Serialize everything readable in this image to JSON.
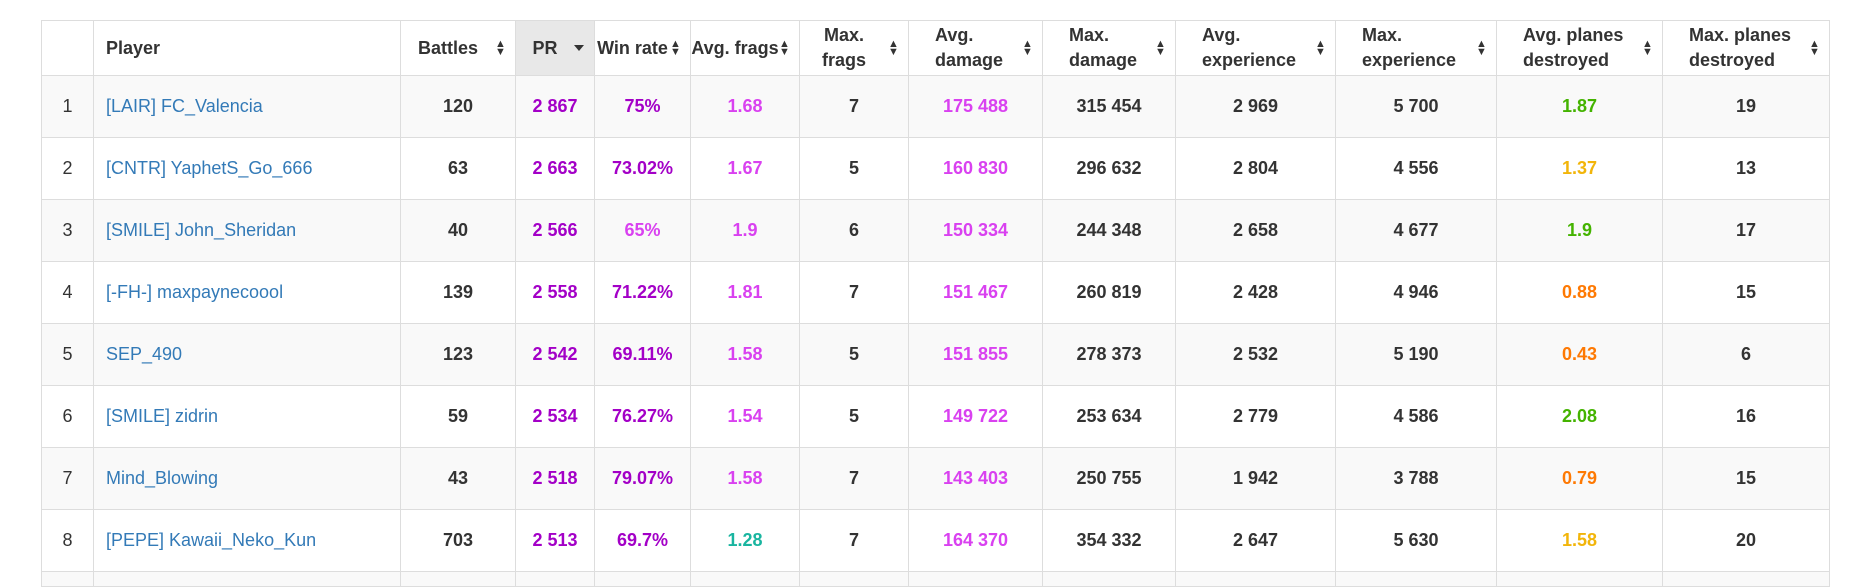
{
  "colors": {
    "link": "#337ab7",
    "purple": "#a300c7",
    "magenta": "#d941f0",
    "green": "#44b300",
    "yellow": "#f2b50a",
    "orange": "#fe7903",
    "teal": "#19b5a0",
    "plain": "#333333"
  },
  "headers": {
    "rank": "",
    "player": "Player",
    "battles": "Battles",
    "pr": "PR",
    "win_rate": "Win rate",
    "avg_frags": "Avg. frags",
    "max_frags": "Max. frags",
    "avg_damage": "Avg. damage",
    "max_damage": "Max. damage",
    "avg_experience": "Avg. experience",
    "max_experience": "Max. experience",
    "avg_planes": "Avg. planes destroyed",
    "max_planes": "Max. planes destroyed"
  },
  "rows": [
    {
      "rank": "1",
      "player": "[LAIR] FC_Valencia",
      "battles": "120",
      "pr": "2 867",
      "win_rate": "75%",
      "avg_frags": "1.68",
      "max_frags": "7",
      "avg_damage": "175 488",
      "max_damage": "315 454",
      "avg_experience": "2 969",
      "max_experience": "5 700",
      "avg_planes": "1.87",
      "max_planes": "19",
      "c": {
        "win_rate": "purple",
        "avg_frags": "magenta",
        "avg_damage": "magenta",
        "avg_planes": "green"
      }
    },
    {
      "rank": "2",
      "player": "[CNTR] YaphetS_Go_666",
      "battles": "63",
      "pr": "2 663",
      "win_rate": "73.02%",
      "avg_frags": "1.67",
      "max_frags": "5",
      "avg_damage": "160 830",
      "max_damage": "296 632",
      "avg_experience": "2 804",
      "max_experience": "4 556",
      "avg_planes": "1.37",
      "max_planes": "13",
      "c": {
        "win_rate": "purple",
        "avg_frags": "magenta",
        "avg_damage": "magenta",
        "avg_planes": "yellow"
      }
    },
    {
      "rank": "3",
      "player": "[SMILE] John_Sheridan",
      "battles": "40",
      "pr": "2 566",
      "win_rate": "65%",
      "avg_frags": "1.9",
      "max_frags": "6",
      "avg_damage": "150 334",
      "max_damage": "244 348",
      "avg_experience": "2 658",
      "max_experience": "4 677",
      "avg_planes": "1.9",
      "max_planes": "17",
      "c": {
        "win_rate": "magenta",
        "avg_frags": "magenta",
        "avg_damage": "magenta",
        "avg_planes": "green"
      }
    },
    {
      "rank": "4",
      "player": "[-FH-] maxpaynecoool",
      "battles": "139",
      "pr": "2 558",
      "win_rate": "71.22%",
      "avg_frags": "1.81",
      "max_frags": "7",
      "avg_damage": "151 467",
      "max_damage": "260 819",
      "avg_experience": "2 428",
      "max_experience": "4 946",
      "avg_planes": "0.88",
      "max_planes": "15",
      "c": {
        "win_rate": "purple",
        "avg_frags": "magenta",
        "avg_damage": "magenta",
        "avg_planes": "orange"
      }
    },
    {
      "rank": "5",
      "player": "SEP_490",
      "battles": "123",
      "pr": "2 542",
      "win_rate": "69.11%",
      "avg_frags": "1.58",
      "max_frags": "5",
      "avg_damage": "151 855",
      "max_damage": "278 373",
      "avg_experience": "2 532",
      "max_experience": "5 190",
      "avg_planes": "0.43",
      "max_planes": "6",
      "c": {
        "win_rate": "purple",
        "avg_frags": "magenta",
        "avg_damage": "magenta",
        "avg_planes": "orange"
      }
    },
    {
      "rank": "6",
      "player": "[SMILE] zidrin",
      "battles": "59",
      "pr": "2 534",
      "win_rate": "76.27%",
      "avg_frags": "1.54",
      "max_frags": "5",
      "avg_damage": "149 722",
      "max_damage": "253 634",
      "avg_experience": "2 779",
      "max_experience": "4 586",
      "avg_planes": "2.08",
      "max_planes": "16",
      "c": {
        "win_rate": "purple",
        "avg_frags": "magenta",
        "avg_damage": "magenta",
        "avg_planes": "green"
      }
    },
    {
      "rank": "7",
      "player": "Mind_Blowing",
      "battles": "43",
      "pr": "2 518",
      "win_rate": "79.07%",
      "avg_frags": "1.58",
      "max_frags": "7",
      "avg_damage": "143 403",
      "max_damage": "250 755",
      "avg_experience": "1 942",
      "max_experience": "3 788",
      "avg_planes": "0.79",
      "max_planes": "15",
      "c": {
        "win_rate": "purple",
        "avg_frags": "magenta",
        "avg_damage": "magenta",
        "avg_planes": "orange"
      }
    },
    {
      "rank": "8",
      "player": "[PEPE] Kawaii_Neko_Kun",
      "battles": "703",
      "pr": "2 513",
      "win_rate": "69.7%",
      "avg_frags": "1.28",
      "max_frags": "7",
      "avg_damage": "164 370",
      "max_damage": "354 332",
      "avg_experience": "2 647",
      "max_experience": "5 630",
      "avg_planes": "1.58",
      "max_planes": "20",
      "c": {
        "win_rate": "purple",
        "avg_frags": "teal",
        "avg_damage": "magenta",
        "avg_planes": "yellow"
      }
    }
  ]
}
